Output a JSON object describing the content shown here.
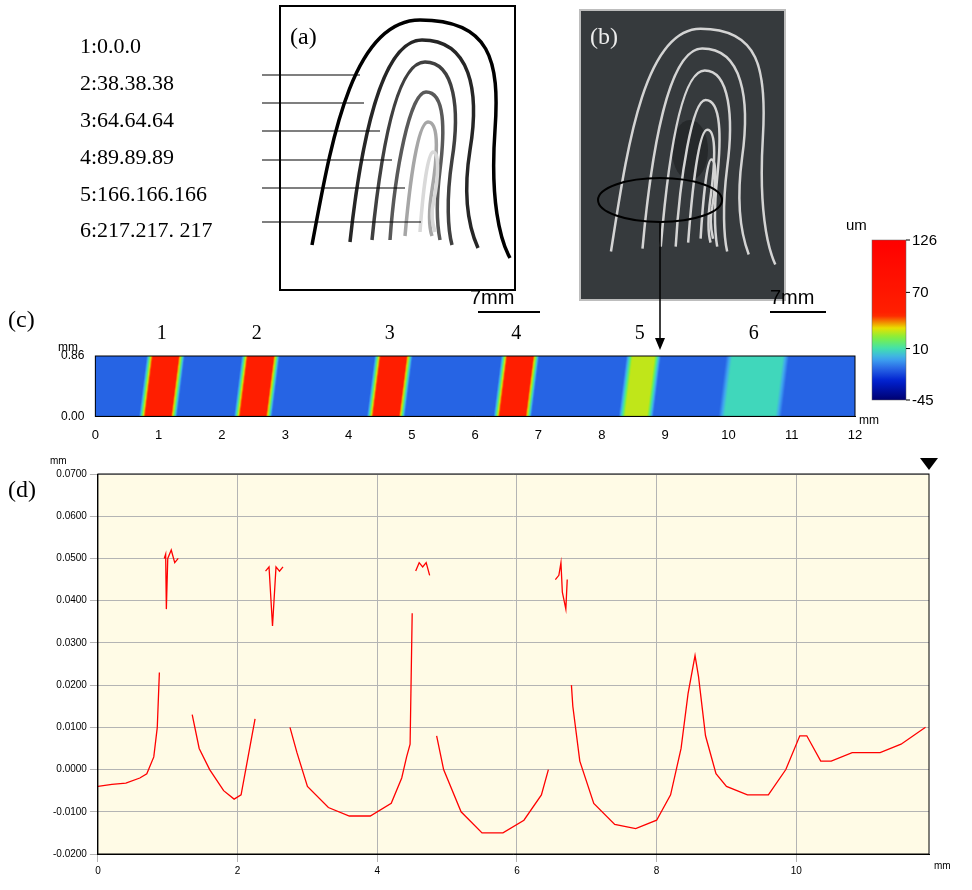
{
  "panel_a": {
    "letter": "(a)",
    "scale_bar": "7mm",
    "curves": [
      {
        "label": "1:0.0.0",
        "color": "#000000"
      },
      {
        "label": "2:38.38.38",
        "color": "#262626"
      },
      {
        "label": "3:64.64.64",
        "color": "#404040"
      },
      {
        "label": "4:89.89.89",
        "color": "#595959"
      },
      {
        "label": "5:166.166.166",
        "color": "#a6a6a6"
      },
      {
        "label": "6:217.217. 217",
        "color": "#d9d9d9"
      }
    ]
  },
  "panel_b": {
    "letter": "(b)",
    "scale_bar": "7mm"
  },
  "color_bar": {
    "unit": "um",
    "range": [
      -45,
      126
    ],
    "ticks": [
      126,
      70,
      10,
      -45
    ]
  },
  "panel_c": {
    "letter": "(c)",
    "x_unit": "mm",
    "y_unit": "mm",
    "xlim": [
      0,
      12
    ],
    "xticks": [
      0,
      1,
      2,
      3,
      4,
      5,
      6,
      7,
      8,
      9,
      10,
      11,
      12
    ],
    "ylim": [
      0,
      0.86
    ],
    "yticks": [
      {
        "value": 0,
        "label": "0.00"
      },
      {
        "value": 0.86,
        "label": "0.86"
      }
    ],
    "base_height": -12,
    "lines": [
      {
        "label": "1",
        "center": 1.05,
        "width": 0.5,
        "height": 62
      },
      {
        "label": "2",
        "center": 2.55,
        "width": 0.5,
        "height": 62
      },
      {
        "label": "3",
        "center": 4.65,
        "width": 0.5,
        "height": 62
      },
      {
        "label": "4",
        "center": 6.65,
        "width": 0.5,
        "height": 62
      },
      {
        "label": "5",
        "center": 8.6,
        "width": 0.45,
        "height": 40
      },
      {
        "label": "6",
        "center": 10.4,
        "width": 0.9,
        "height": 20
      }
    ]
  },
  "panel_d": {
    "letter": "(d)"
  },
  "chart_data": {
    "type": "line",
    "color": "#ff0000",
    "x_label": "mm",
    "y_label": "mm",
    "grid": true,
    "xlim": [
      0,
      11.9
    ],
    "xticks": [
      0,
      2,
      4,
      6,
      8,
      10
    ],
    "ylim": [
      -0.02,
      0.07
    ],
    "yticks": [
      {
        "value": -0.02,
        "label": "-0.0200"
      },
      {
        "value": -0.01,
        "label": "-0.0100"
      },
      {
        "value": 0,
        "label": "0.0000"
      },
      {
        "value": 0.01,
        "label": "0.0100"
      },
      {
        "value": 0.02,
        "label": "0.0200"
      },
      {
        "value": 0.03,
        "label": "0.0300"
      },
      {
        "value": 0.04,
        "label": "0.0400"
      },
      {
        "value": 0.05,
        "label": "0.0500"
      },
      {
        "value": 0.06,
        "label": "0.0600"
      },
      {
        "value": 0.07,
        "label": "0.0700"
      }
    ],
    "x": [
      0,
      0.2,
      0.4,
      0.6,
      0.7,
      0.8,
      0.85,
      0.88,
      0.9,
      0.95,
      0.97,
      0.98,
      1.0,
      1.05,
      1.1,
      1.15,
      1.2,
      1.35,
      1.45,
      1.6,
      1.8,
      1.95,
      2.05,
      2.15,
      2.25,
      2.3,
      2.4,
      2.45,
      2.5,
      2.55,
      2.6,
      2.65,
      2.7,
      2.75,
      2.85,
      3.0,
      3.3,
      3.6,
      3.9,
      4.2,
      4.35,
      4.42,
      4.47,
      4.5,
      4.52,
      4.55,
      4.6,
      4.65,
      4.7,
      4.75,
      4.8,
      4.85,
      4.95,
      5.2,
      5.5,
      5.8,
      6.1,
      6.35,
      6.45,
      6.5,
      6.55,
      6.6,
      6.63,
      6.65,
      6.7,
      6.72,
      6.75,
      6.78,
      6.8,
      6.9,
      7.1,
      7.4,
      7.7,
      8.0,
      8.2,
      8.35,
      8.45,
      8.55,
      8.6,
      8.7,
      8.85,
      9.0,
      9.3,
      9.6,
      9.85,
      10.05,
      10.15,
      10.35,
      10.5,
      10.8,
      11.2,
      11.5,
      11.85
    ],
    "values": [
      -0.004,
      -0.0035,
      -0.0032,
      -0.002,
      -0.001,
      0.003,
      0.01,
      0.023,
      null,
      0.05,
      0.051,
      0.038,
      0.05,
      0.052,
      0.049,
      0.05,
      null,
      0.013,
      0.005,
      0.0,
      -0.005,
      -0.007,
      -0.006,
      0.003,
      0.012,
      null,
      0.047,
      0.048,
      0.034,
      0.048,
      0.047,
      0.048,
      null,
      0.01,
      0.004,
      -0.004,
      -0.009,
      -0.011,
      -0.011,
      -0.008,
      -0.002,
      0.003,
      0.006,
      0.037,
      null,
      0.047,
      0.049,
      0.048,
      0.049,
      0.046,
      null,
      0.008,
      0,
      -0.01,
      -0.015,
      -0.015,
      -0.012,
      -0.006,
      0,
      null,
      0.045,
      0.046,
      0.049,
      0.042,
      0.038,
      0.045,
      null,
      0.02,
      0.015,
      0.002,
      -0.008,
      -0.013,
      -0.014,
      -0.012,
      -0.006,
      0.005,
      0.018,
      0.027,
      0.022,
      0.008,
      -0.001,
      -0.004,
      -0.006,
      -0.006,
      0,
      0.008,
      0.008,
      0.002,
      0.002,
      0.004,
      0.004,
      0.006,
      0.01
    ]
  }
}
